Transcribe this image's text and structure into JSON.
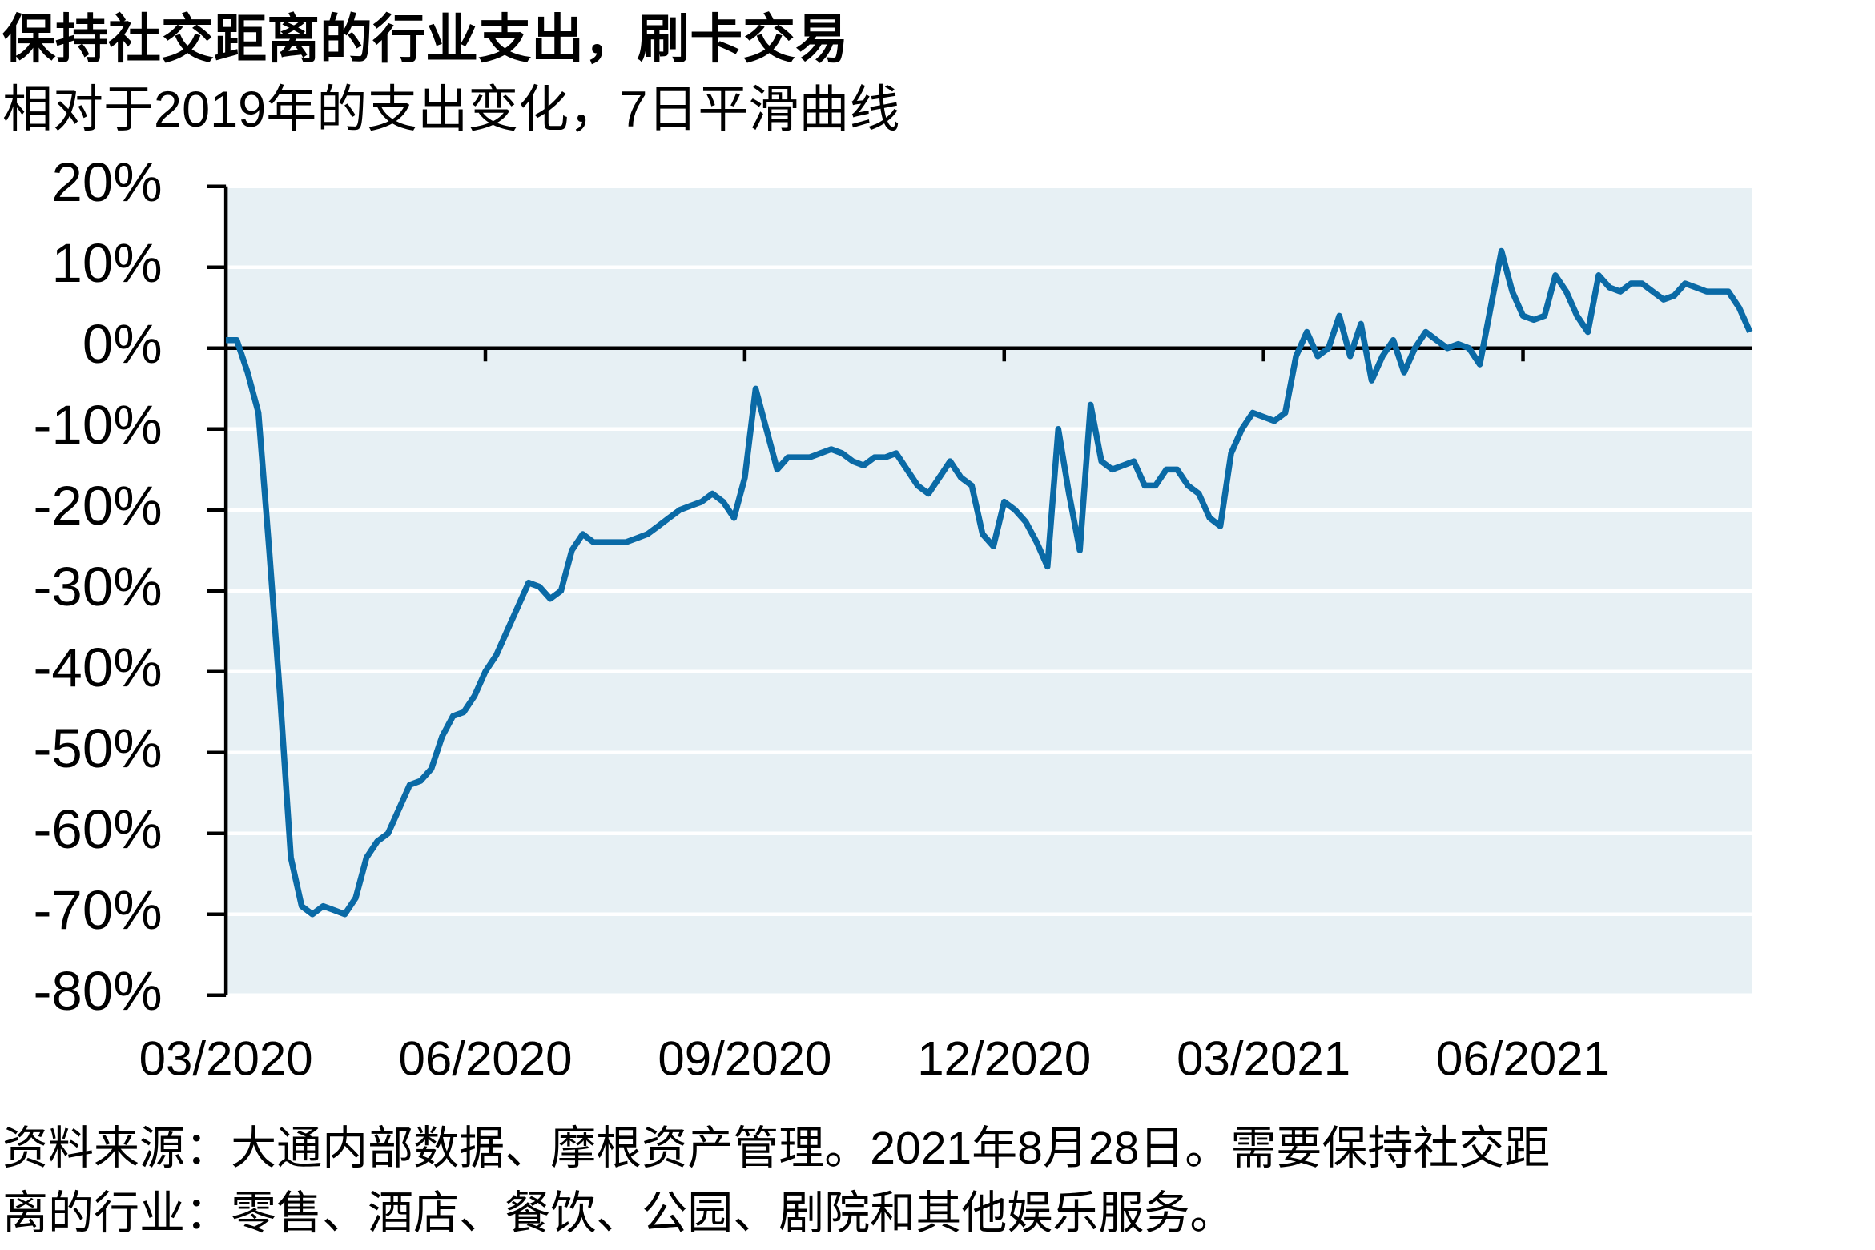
{
  "chart_data": {
    "type": "line",
    "title": "保持社交距离的行业支出，刷卡交易",
    "subtitle": "相对于2019年的支出变化，7日平滑曲线",
    "footnote": [
      "资料来源：大通内部数据、摩根资产管理。2021年8月28日。需要保持社交距",
      "离的行业：零售、酒店、餐饮、公园、剧院和其他娱乐服务。"
    ],
    "categories": [
      "03/2020",
      null,
      null,
      null,
      null,
      null,
      null,
      null,
      null,
      null,
      null,
      null,
      null,
      null,
      null,
      null,
      null,
      null,
      null,
      null,
      null,
      null,
      null,
      null,
      "06/2020",
      null,
      null,
      null,
      null,
      null,
      null,
      null,
      null,
      null,
      null,
      null,
      null,
      null,
      null,
      null,
      null,
      null,
      null,
      null,
      null,
      null,
      null,
      null,
      "09/2020",
      null,
      null,
      null,
      null,
      null,
      null,
      null,
      null,
      null,
      null,
      null,
      null,
      null,
      null,
      null,
      null,
      null,
      null,
      null,
      null,
      null,
      null,
      null,
      "12/2020",
      null,
      null,
      null,
      null,
      null,
      null,
      null,
      null,
      null,
      null,
      null,
      null,
      null,
      null,
      null,
      null,
      null,
      null,
      null,
      null,
      null,
      null,
      null,
      "03/2021",
      null,
      null,
      null,
      null,
      null,
      null,
      null,
      null,
      null,
      null,
      null,
      null,
      null,
      null,
      null,
      null,
      null,
      null,
      null,
      null,
      null,
      null,
      null,
      "06/2021",
      null,
      null,
      null,
      null,
      null,
      null,
      null,
      null,
      null,
      null,
      null,
      null,
      null,
      null,
      null,
      null,
      null,
      null,
      null,
      null,
      null
    ],
    "series": [
      {
        "color": "#0a6aa6",
        "values": [
          1,
          1,
          -3,
          -8,
          -25,
          -43,
          -63,
          -69,
          -70,
          -69,
          -69.5,
          -70,
          -68,
          -63,
          -61,
          -60,
          -57,
          -54,
          -53.5,
          -52,
          -48,
          -45.5,
          -45,
          -43,
          -40,
          -38,
          -35,
          -32,
          -29,
          -29.5,
          -31,
          -30,
          -25,
          -23,
          -24,
          -24,
          -24,
          -24,
          -23.5,
          -23,
          -22,
          -21,
          -20,
          -19.5,
          -19,
          -18,
          -19,
          -21,
          -16,
          -5,
          -10,
          -15,
          -13.5,
          -13.5,
          -13.5,
          -13,
          -12.5,
          -13,
          -14,
          -14.5,
          -13.5,
          -13.5,
          -13,
          -15,
          -17,
          -18,
          -16,
          -14,
          -16,
          -17,
          -23,
          -24.5,
          -19,
          -20,
          -21.5,
          -24,
          -27,
          -10,
          -18,
          -25,
          -7,
          -14,
          -15,
          -14.5,
          -14,
          -17,
          -17,
          -15,
          -15,
          -17,
          -18,
          -21,
          -22,
          -13,
          -10,
          -8,
          -8.5,
          -9,
          -8,
          -1,
          2,
          -1,
          0,
          4,
          -1,
          3,
          -4,
          -1,
          1,
          -3,
          0,
          2,
          1,
          0,
          0.5,
          0,
          -2,
          5,
          12,
          7,
          4,
          3.5,
          4,
          9,
          7,
          4,
          2,
          9,
          7.5,
          7,
          8,
          8,
          7,
          6,
          6.5,
          8,
          7.5,
          7,
          7,
          7,
          5,
          2
        ]
      }
    ],
    "ylim": [
      -80,
      20
    ],
    "yticks": [
      {
        "value": -80,
        "label": "-80%"
      },
      {
        "value": -70,
        "label": "-70%"
      },
      {
        "value": -60,
        "label": "-60%"
      },
      {
        "value": -50,
        "label": "-50%"
      },
      {
        "value": -40,
        "label": "-40%"
      },
      {
        "value": -30,
        "label": "-30%"
      },
      {
        "value": -20,
        "label": "-20%"
      },
      {
        "value": -10,
        "label": "-10%"
      },
      {
        "value": 0,
        "label": "0%"
      },
      {
        "value": 10,
        "label": "10%"
      },
      {
        "value": 20,
        "label": "20%"
      }
    ],
    "grid": true
  }
}
